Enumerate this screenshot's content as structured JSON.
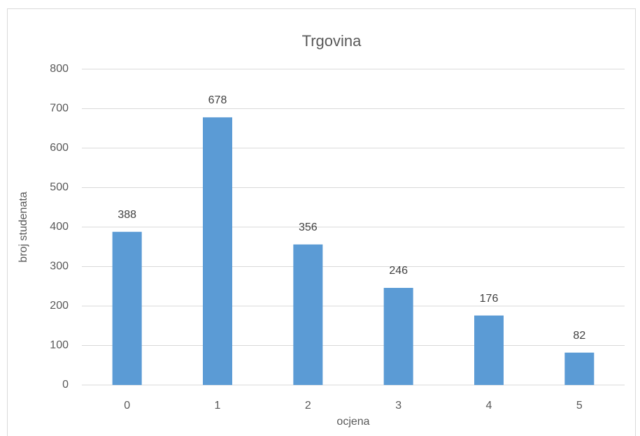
{
  "chart_data": {
    "type": "bar",
    "title": "Trgovina",
    "x_label": "ocjena",
    "y_label": "broj studenata",
    "categories": [
      "0",
      "1",
      "2",
      "3",
      "4",
      "5"
    ],
    "values": [
      388,
      678,
      356,
      246,
      176,
      82
    ],
    "color": "#5b9bd5",
    "ylim": [
      0,
      800
    ],
    "yticks": [
      0,
      100,
      200,
      300,
      400,
      500,
      600,
      700,
      800
    ],
    "grid": true
  }
}
